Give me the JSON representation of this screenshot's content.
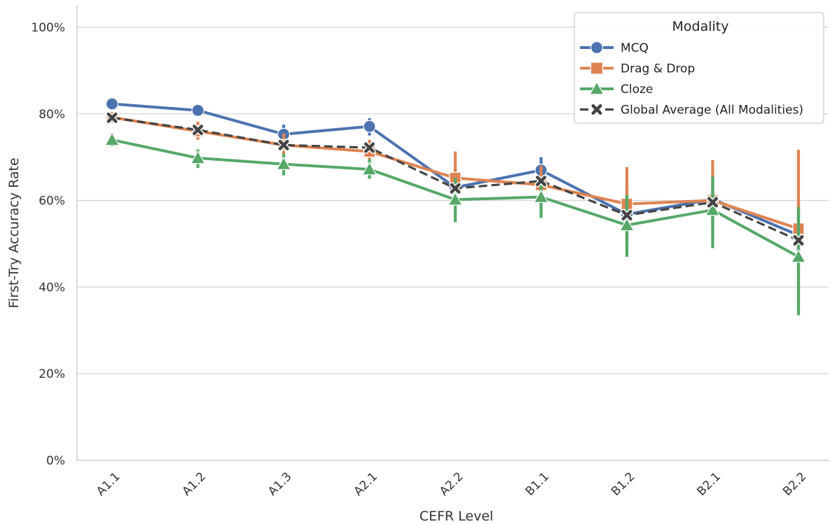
{
  "chart_data": {
    "type": "line",
    "xlabel": "CEFR Level",
    "ylabel": "First-Try Accuracy Rate",
    "categories": [
      "A1.1",
      "A1.2",
      "A1.3",
      "A2.1",
      "A2.2",
      "B1.1",
      "B1.2",
      "B2.1",
      "B2.2"
    ],
    "ylim": [
      0,
      1.05
    ],
    "y_ticks": [
      0,
      0.2,
      0.4,
      0.6,
      0.8,
      1.0
    ],
    "y_tick_labels": [
      "0%",
      "20%",
      "40%",
      "60%",
      "80%",
      "100%"
    ],
    "grid": "horizontal",
    "legend": {
      "title": "Modality",
      "position": "top-right"
    },
    "series": [
      {
        "name": "MCQ",
        "color": "#4c72b0",
        "marker": "circle",
        "line_style": "solid",
        "values": [
          0.823,
          0.808,
          0.753,
          0.771,
          0.63,
          0.67,
          0.568,
          0.603,
          0.52
        ],
        "ci_low": [
          0.815,
          0.8,
          0.73,
          0.75,
          0.59,
          0.64,
          0.5,
          0.55,
          0.445
        ],
        "ci_high": [
          0.83,
          0.816,
          0.775,
          0.79,
          0.675,
          0.7,
          0.63,
          0.655,
          0.6
        ]
      },
      {
        "name": "Drag & Drop",
        "color": "#dd8452",
        "marker": "square",
        "line_style": "solid",
        "values": [
          0.792,
          0.76,
          0.728,
          0.713,
          0.652,
          0.636,
          0.592,
          0.6,
          0.535
        ],
        "ci_low": [
          0.782,
          0.74,
          0.7,
          0.69,
          0.6,
          0.59,
          0.505,
          0.51,
          0.355
        ],
        "ci_high": [
          0.802,
          0.782,
          0.755,
          0.74,
          0.713,
          0.68,
          0.677,
          0.693,
          0.717
        ]
      },
      {
        "name": "Cloze",
        "color": "#55a868",
        "marker": "triangle",
        "line_style": "solid",
        "values": [
          0.74,
          0.698,
          0.684,
          0.672,
          0.602,
          0.608,
          0.543,
          0.578,
          0.47
        ],
        "ci_low": [
          0.725,
          0.675,
          0.658,
          0.65,
          0.55,
          0.56,
          0.47,
          0.49,
          0.335
        ],
        "ci_high": [
          0.755,
          0.718,
          0.708,
          0.695,
          0.652,
          0.65,
          0.612,
          0.655,
          0.585
        ]
      },
      {
        "name": "Global Average (All Modalities)",
        "color": "#444444",
        "marker": "x",
        "line_style": "dashed",
        "values": [
          0.791,
          0.763,
          0.728,
          0.722,
          0.628,
          0.645,
          0.566,
          0.596,
          0.508
        ]
      }
    ]
  }
}
